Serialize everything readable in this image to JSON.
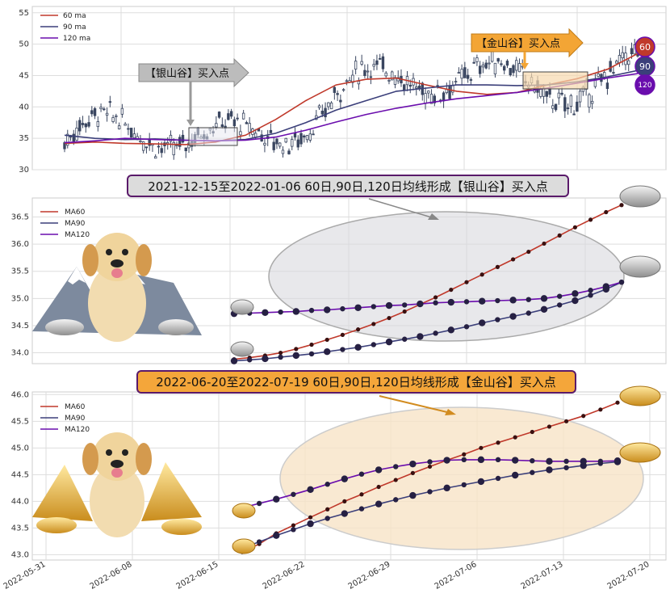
{
  "colors": {
    "ma60": "#c0392b",
    "ma90": "#3b3f7a",
    "ma120": "#6a0dad",
    "silver_ellipse": "#d9d9de",
    "gold_ellipse": "#f7e3c7",
    "silver_banner": "#dcdcdc",
    "gold_banner": "#f4a63a",
    "candle": "#3a4660"
  },
  "top": {
    "legend": [
      "60 ma",
      "90 ma",
      "120 ma"
    ],
    "yticks": [
      30,
      35,
      40,
      45,
      50,
      55
    ],
    "silver_callout": "【银山谷】买入点",
    "gold_callout": "【金山谷】买入点",
    "badges": [
      "60",
      "90",
      "120"
    ]
  },
  "middle": {
    "banner": "2021-12-15至2022-01-06 60日,90日,120日均线形成【银山谷】买入点",
    "legend": [
      "MA60",
      "MA90",
      "MA120"
    ],
    "yticks": [
      "34.0",
      "34.5",
      "35.0",
      "35.5",
      "36.0",
      "36.5"
    ]
  },
  "bottom": {
    "banner": "2022-06-20至2022-07-19 60日,90日,120日均线形成【金山谷】买入点",
    "legend": [
      "MA60",
      "MA90",
      "MA120"
    ],
    "yticks": [
      "43.0",
      "43.5",
      "44.0",
      "44.5",
      "45.0",
      "45.5",
      "46.0"
    ],
    "xticks": [
      "2022-05-31",
      "2022-06-08",
      "2022-06-15",
      "2022-06-22",
      "2022-06-29",
      "2022-07-06",
      "2022-07-13",
      "2022-07-20"
    ]
  },
  "chart_data": [
    {
      "type": "line",
      "title": "",
      "ylim": [
        30,
        56
      ],
      "series": [
        {
          "name": "60 ma",
          "values": [
            34.2,
            34.4,
            34.2,
            34.1,
            34.0,
            34.4,
            35.5,
            38.0,
            41.0,
            43.5,
            44.4,
            44.6,
            43.5,
            42.5,
            42.0,
            42.3,
            43.5,
            44.5,
            46.0,
            48.5
          ]
        },
        {
          "name": "90 ma",
          "values": [
            35.5,
            35.0,
            34.8,
            34.9,
            34.7,
            34.6,
            34.8,
            35.8,
            37.5,
            39.5,
            41.0,
            42.5,
            43.0,
            43.5,
            43.5,
            43.4,
            43.5,
            44.0,
            44.8,
            45.8
          ]
        },
        {
          "name": "120 ma",
          "values": [
            34.3,
            34.6,
            35.0,
            34.8,
            34.7,
            34.6,
            34.7,
            35.2,
            36.3,
            37.6,
            38.8,
            39.8,
            40.6,
            41.3,
            41.8,
            42.3,
            43.0,
            43.8,
            44.6,
            45.3
          ]
        }
      ]
    },
    {
      "type": "line",
      "title": "2021-12-15至2022-01-06 60日,90日,120日均线形成【银山谷】买入点",
      "ylim": [
        33.8,
        36.85
      ],
      "series": [
        {
          "name": "MA60",
          "values": [
            33.88,
            33.91,
            33.95,
            34.0,
            34.07,
            34.15,
            34.24,
            34.33,
            34.43,
            34.53,
            34.64,
            34.76,
            34.89,
            35.02,
            35.16,
            35.3,
            35.44,
            35.58,
            35.72,
            35.86,
            36.01,
            36.16,
            36.31,
            36.45,
            36.59,
            36.72
          ]
        },
        {
          "name": "MA90",
          "values": [
            33.85,
            33.87,
            33.89,
            33.92,
            33.95,
            33.98,
            34.02,
            34.06,
            34.1,
            34.15,
            34.2,
            34.25,
            34.3,
            34.36,
            34.42,
            34.48,
            34.55,
            34.61,
            34.67,
            34.73,
            34.8,
            34.88,
            34.96,
            35.06,
            35.17,
            35.3
          ]
        },
        {
          "name": "MA120",
          "values": [
            34.72,
            34.73,
            34.74,
            34.75,
            34.76,
            34.78,
            34.79,
            34.81,
            34.83,
            34.85,
            34.87,
            34.88,
            34.9,
            34.92,
            34.93,
            34.94,
            34.95,
            34.96,
            34.97,
            34.98,
            35.0,
            35.04,
            35.09,
            35.15,
            35.22,
            35.3
          ]
        }
      ]
    },
    {
      "type": "line",
      "title": "2022-06-20至2022-07-19 60日,90日,120日均线形成【金山谷】买入点",
      "ylim": [
        42.9,
        46.05
      ],
      "x": [
        "2022-06-17",
        "2022-06-20",
        "2022-06-21",
        "2022-06-22",
        "2022-06-23",
        "2022-06-24",
        "2022-06-27",
        "2022-06-28",
        "2022-06-29",
        "2022-06-30",
        "2022-07-01",
        "2022-07-04",
        "2022-07-05",
        "2022-07-06",
        "2022-07-07",
        "2022-07-08",
        "2022-07-11",
        "2022-07-12",
        "2022-07-13",
        "2022-07-14",
        "2022-07-15",
        "2022-07-18",
        "2022-07-19"
      ],
      "series": [
        {
          "name": "MA60",
          "values": [
            43.05,
            43.2,
            43.4,
            43.55,
            43.7,
            43.85,
            44.0,
            44.13,
            44.27,
            44.4,
            44.53,
            44.65,
            44.77,
            44.88,
            45.0,
            45.1,
            45.2,
            45.3,
            45.4,
            45.5,
            45.6,
            45.72,
            45.85
          ]
        },
        {
          "name": "MA90",
          "values": [
            43.12,
            43.24,
            43.36,
            43.47,
            43.58,
            43.68,
            43.77,
            43.86,
            43.95,
            44.03,
            44.11,
            44.18,
            44.25,
            44.31,
            44.37,
            44.43,
            44.49,
            44.54,
            44.59,
            44.63,
            44.67,
            44.71,
            44.74
          ]
        },
        {
          "name": "MA120",
          "values": [
            43.88,
            43.96,
            44.04,
            44.13,
            44.22,
            44.32,
            44.42,
            44.51,
            44.59,
            44.65,
            44.7,
            44.74,
            44.77,
            44.78,
            44.78,
            44.78,
            44.77,
            44.76,
            44.75,
            44.75,
            44.75,
            44.75,
            44.76
          ]
        }
      ]
    }
  ]
}
